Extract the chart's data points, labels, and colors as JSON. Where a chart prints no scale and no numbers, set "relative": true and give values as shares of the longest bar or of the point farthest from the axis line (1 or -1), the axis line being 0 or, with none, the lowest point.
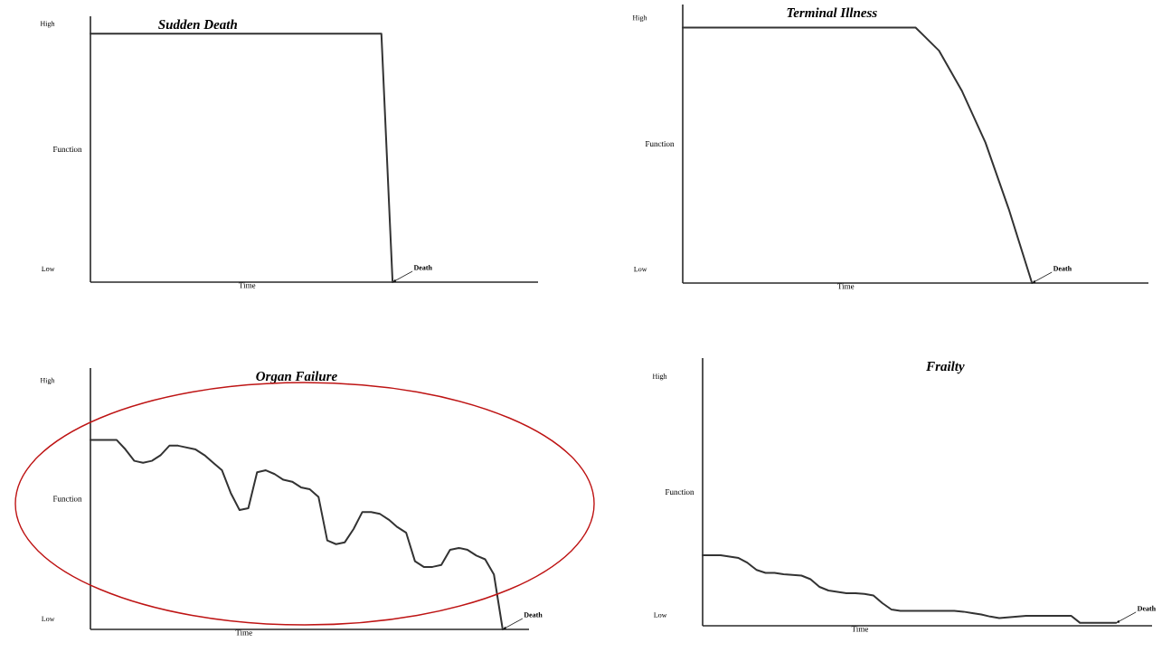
{
  "chart_data": [
    {
      "type": "line",
      "title": "Sudden Death",
      "xlabel": "Time",
      "ylabel": "Function",
      "relative": true,
      "categories": [
        null,
        null,
        null,
        null,
        null,
        null,
        null,
        null,
        null,
        null,
        null,
        null,
        null,
        null,
        null,
        null,
        null,
        null,
        null,
        null,
        null,
        null,
        null,
        null,
        null,
        null,
        null,
        null,
        null,
        null,
        null,
        null,
        null,
        null,
        null,
        null,
        null,
        null,
        null,
        null,
        null
      ],
      "series": [
        {
          "color": "#333333",
          "values": [
            1,
            1,
            1,
            1,
            1,
            1,
            1,
            1,
            1,
            1,
            1,
            1,
            1,
            1,
            1,
            1,
            1,
            1,
            1,
            1,
            1,
            1,
            1,
            1,
            1,
            1,
            1,
            0,
            null,
            null,
            null,
            null,
            null,
            null,
            null,
            null,
            null,
            null,
            null,
            null,
            null
          ]
        }
      ],
      "annotations": [
        "High",
        "Low",
        "Death"
      ]
    },
    {
      "type": "line",
      "title": "Terminal Illness",
      "xlabel": "Time",
      "ylabel": "Function",
      "relative": true,
      "categories": [
        null,
        null,
        null,
        null,
        null,
        null,
        null,
        null,
        null,
        null,
        null,
        null,
        null,
        null,
        null,
        null,
        null,
        null,
        null,
        null,
        null
      ],
      "series": [
        {
          "color": "#333333",
          "values": [
            1,
            1,
            1,
            1,
            1,
            1,
            1,
            1,
            1,
            1,
            1,
            0.91,
            0.75,
            0.55,
            0.29,
            0,
            null,
            null,
            null,
            null,
            null
          ]
        }
      ],
      "annotations": [
        "High",
        "Low",
        "Death"
      ]
    },
    {
      "type": "line",
      "title": "Organ Failure",
      "xlabel": "Time",
      "ylabel": "Function",
      "relative": true,
      "categories": [
        null,
        null,
        null,
        null,
        null,
        null,
        null,
        null,
        null,
        null,
        null,
        null,
        null,
        null,
        null,
        null,
        null,
        null,
        null,
        null,
        null,
        null,
        null,
        null,
        null,
        null,
        null,
        null,
        null,
        null,
        null,
        null,
        null,
        null,
        null,
        null,
        null,
        null,
        null,
        null,
        null,
        null,
        null,
        null,
        null,
        null,
        null,
        null,
        null,
        null,
        null
      ],
      "series": [
        {
          "color": "#333333",
          "values": [
            1,
            1,
            1,
            1,
            0.95,
            0.89,
            0.88,
            0.89,
            0.92,
            0.97,
            0.97,
            0.96,
            0.95,
            0.92,
            0.88,
            0.84,
            0.72,
            0.63,
            0.64,
            0.83,
            0.84,
            0.82,
            0.79,
            0.78,
            0.75,
            0.74,
            0.7,
            0.47,
            0.45,
            0.46,
            0.53,
            0.62,
            0.62,
            0.61,
            0.58,
            0.54,
            0.51,
            0.36,
            0.33,
            0.33,
            0.34,
            0.42,
            0.43,
            0.42,
            0.39,
            0.37,
            0.29,
            0,
            null,
            null,
            null
          ]
        }
      ],
      "annotations": [
        "High",
        "Low",
        "Death"
      ]
    },
    {
      "type": "line",
      "title": "Frailty",
      "xlabel": "Time",
      "ylabel": "Function",
      "relative": true,
      "categories": [
        null,
        null,
        null,
        null,
        null,
        null,
        null,
        null,
        null,
        null,
        null,
        null,
        null,
        null,
        null,
        null,
        null,
        null,
        null,
        null,
        null,
        null,
        null,
        null,
        null,
        null,
        null,
        null,
        null,
        null,
        null,
        null,
        null,
        null,
        null,
        null,
        null,
        null,
        null,
        null,
        null,
        null,
        null,
        null,
        null,
        null,
        null,
        null,
        null,
        null,
        null
      ],
      "series": [
        {
          "color": "#333333",
          "values": [
            1,
            1,
            1,
            0.98,
            0.96,
            0.89,
            0.79,
            0.75,
            0.75,
            0.73,
            0.72,
            0.71,
            0.66,
            0.55,
            0.5,
            0.48,
            0.46,
            0.46,
            0.45,
            0.43,
            0.32,
            0.23,
            0.21,
            0.21,
            0.21,
            0.21,
            0.21,
            0.21,
            0.21,
            0.2,
            0.18,
            0.16,
            0.13,
            0.11,
            0.12,
            0.13,
            0.14,
            0.14,
            0.14,
            0.14,
            0.14,
            0.14,
            0.04,
            0.04,
            0.04,
            0.04,
            0.04,
            null,
            null,
            null,
            null
          ]
        }
      ],
      "annotations": [
        "High",
        "Low",
        "Death"
      ]
    }
  ]
}
